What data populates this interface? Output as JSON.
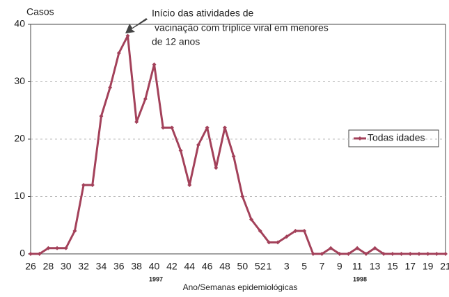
{
  "chart_data": {
    "type": "line",
    "y_label": "Casos",
    "x_label": "Ano/Semanas epidemiológicas",
    "year_labels": [
      "1997",
      "1998"
    ],
    "annotation": [
      "Início das atividades de",
      "vacinação com tríplice viral em menores",
      "de 12 anos"
    ],
    "categories": [
      "26",
      null,
      "28",
      null,
      "30",
      null,
      "32",
      null,
      "34",
      null,
      "36",
      null,
      "38",
      null,
      "40",
      null,
      "42",
      null,
      "44",
      null,
      "46",
      null,
      "48",
      null,
      "50",
      null,
      "52",
      "1",
      null,
      "3",
      null,
      "5",
      null,
      "7",
      null,
      "9",
      null,
      "11",
      null,
      "13",
      null,
      "15",
      null,
      "17",
      null,
      "19",
      null,
      "21"
    ],
    "series": [
      {
        "name": "Todas idades",
        "color": "#a3415a",
        "values": [
          0,
          0,
          1,
          1,
          1,
          4,
          12,
          12,
          24,
          29,
          35,
          38,
          23,
          27,
          33,
          22,
          22,
          18,
          12,
          19,
          22,
          15,
          22,
          17,
          10,
          6,
          4,
          2,
          2,
          3,
          4,
          4,
          0,
          0,
          1,
          0,
          0,
          1,
          0,
          1,
          0,
          0,
          0,
          0,
          0,
          0,
          0,
          0
        ]
      }
    ],
    "ylim": [
      0,
      40
    ],
    "yticks": [
      0,
      10,
      20,
      30,
      40
    ],
    "grid": true,
    "legend": "right"
  }
}
